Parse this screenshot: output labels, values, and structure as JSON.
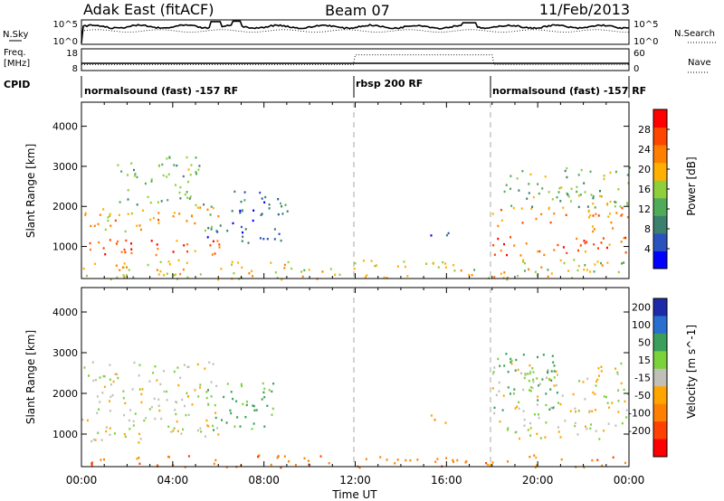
{
  "header": {
    "radar_label": "Adak East (fitACF)",
    "beam_label": "Beam 07",
    "date_label": "11/Feb/2013"
  },
  "nsky_panel": {
    "left_label": "N.Sky",
    "right_label": "N.Search",
    "left_ticks": [
      "10^5",
      "10^0"
    ],
    "right_ticks": [
      "10^5",
      "10^0"
    ]
  },
  "freq_panel": {
    "left_label_line1": "Freq.",
    "left_label_line2": "[MHz]",
    "right_label": "Nave",
    "left_ticks": [
      "18",
      "8"
    ],
    "right_ticks": [
      "60",
      "0"
    ]
  },
  "cpid": {
    "label": "CPID",
    "segments": [
      {
        "label": "normalsound (fast) -157 RF",
        "start_hr": 0
      },
      {
        "label": "rbsp 200 RF",
        "start_hr": 12
      },
      {
        "label": "normalsound (fast) -157 RF",
        "start_hr": 18
      }
    ]
  },
  "colors": {
    "power_scale": [
      "#0000ff",
      "#2a52be",
      "#3b7f6e",
      "#4faa5a",
      "#8fcf3c",
      "#ffb000",
      "#ff8000",
      "#ff4500",
      "#ff0000"
    ],
    "velocity_scale": [
      "#1d2ba8",
      "#2a6fcf",
      "#3a9f5a",
      "#7cd23a",
      "#c0c0b8",
      "#ffa500",
      "#ff8000",
      "#ff4000",
      "#ff0000"
    ]
  },
  "chart_data": [
    {
      "type": "heatmap",
      "panel": "power",
      "xlabel": "Time UT",
      "ylabel": "Slant Range [km]",
      "xlim": [
        0,
        24
      ],
      "ylim": [
        200,
        4600
      ],
      "x_tick_labels": [
        "00:00",
        "04:00",
        "08:00",
        "12:00",
        "16:00",
        "20:00",
        "00:00"
      ],
      "x_ticks": [
        0,
        4,
        8,
        12,
        16,
        20,
        24
      ],
      "y_ticks": [
        1000,
        2000,
        3000,
        4000
      ],
      "colorbar_label": "Power [dB]",
      "colorbar_ticks": [
        4,
        8,
        12,
        16,
        20,
        24,
        28
      ],
      "colorbar_range": [
        0,
        32
      ],
      "echo_regions": [
        {
          "t0": 0,
          "t1": 6.5,
          "r0": 800,
          "r1": 1200,
          "value": 26
        },
        {
          "t0": 0,
          "t1": 6,
          "r0": 1400,
          "r1": 2000,
          "value": 20
        },
        {
          "t0": 1.5,
          "t1": 5.5,
          "r0": 2000,
          "r1": 3300,
          "value": 14
        },
        {
          "t0": 5.5,
          "t1": 9,
          "r0": 1100,
          "r1": 2400,
          "value": 7
        },
        {
          "t0": 15,
          "t1": 16.5,
          "r0": 1300,
          "r1": 1500,
          "value": 6
        },
        {
          "t0": 18,
          "t1": 24,
          "r0": 800,
          "r1": 1300,
          "value": 26
        },
        {
          "t0": 18,
          "t1": 24,
          "r0": 1400,
          "r1": 2000,
          "value": 22
        },
        {
          "t0": 18.5,
          "t1": 24,
          "r0": 2000,
          "r1": 3000,
          "value": 14
        },
        {
          "t0": 0,
          "t1": 24,
          "r0": 200,
          "r1": 700,
          "value": 18
        }
      ]
    },
    {
      "type": "heatmap",
      "panel": "velocity",
      "xlabel": "Time UT",
      "ylabel": "Slant Range [km]",
      "xlim": [
        0,
        24
      ],
      "ylim": [
        200,
        4600
      ],
      "x_tick_labels": [
        "00:00",
        "04:00",
        "08:00",
        "12:00",
        "16:00",
        "20:00",
        "00:00"
      ],
      "x_ticks": [
        0,
        4,
        8,
        12,
        16,
        20,
        24
      ],
      "y_ticks": [
        1000,
        2000,
        3000,
        4000
      ],
      "colorbar_label": "Velocity [m s^-1]",
      "colorbar_ticks": [
        "200",
        "100",
        "50",
        "15",
        "-15",
        "-50",
        "-100",
        "-200"
      ],
      "echo_regions": [
        {
          "t0": 0,
          "t1": 6,
          "r0": 800,
          "r1": 2800,
          "value": 0
        },
        {
          "t0": 5.5,
          "t1": 8.5,
          "r0": 1100,
          "r1": 2300,
          "value": 60
        },
        {
          "t0": 15,
          "t1": 16.5,
          "r0": 1300,
          "r1": 1500,
          "value": -60
        },
        {
          "t0": 18,
          "t1": 24,
          "r0": 900,
          "r1": 2800,
          "value": 0
        },
        {
          "t0": 18,
          "t1": 21,
          "r0": 1600,
          "r1": 3000,
          "value": 60
        },
        {
          "t0": 0,
          "t1": 24,
          "r0": 200,
          "r1": 500,
          "value": -80
        }
      ]
    }
  ]
}
